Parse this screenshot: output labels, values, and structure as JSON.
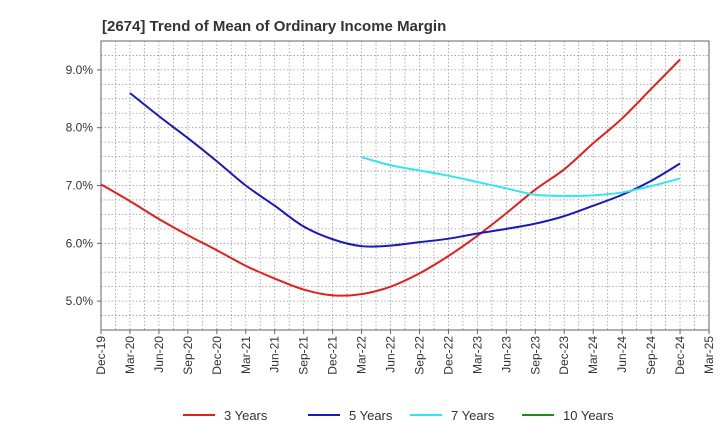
{
  "chart_data": {
    "type": "line",
    "title": "[2674]  Trend of Mean of Ordinary Income Margin",
    "xlabel": "",
    "ylabel": "",
    "categories": [
      "Dec-19",
      "Mar-20",
      "Jun-20",
      "Sep-20",
      "Dec-20",
      "Mar-21",
      "Jun-21",
      "Sep-21",
      "Dec-21",
      "Mar-22",
      "Jun-22",
      "Sep-22",
      "Dec-22",
      "Mar-23",
      "Jun-23",
      "Sep-23",
      "Dec-23",
      "Mar-24",
      "Jun-24",
      "Sep-24",
      "Dec-24",
      "Mar-25"
    ],
    "y_ticks": [
      "5.0%",
      "6.0%",
      "7.0%",
      "8.0%",
      "9.0%"
    ],
    "ylim": [
      4.5,
      9.5
    ],
    "grid": true,
    "legend_position": "bottom",
    "series": [
      {
        "name": "3 Years",
        "color": "#e0201c",
        "values": [
          7.02,
          6.73,
          6.42,
          6.14,
          5.88,
          5.61,
          5.39,
          5.2,
          5.1,
          5.12,
          5.25,
          5.48,
          5.78,
          6.13,
          6.52,
          6.93,
          7.28,
          7.73,
          8.16,
          8.67,
          9.18,
          null
        ]
      },
      {
        "name": "5 Years",
        "color": "#1a1ab8",
        "values": [
          null,
          8.6,
          8.2,
          7.82,
          7.42,
          7.0,
          6.65,
          6.29,
          6.07,
          5.95,
          5.96,
          6.02,
          6.08,
          6.17,
          6.25,
          6.34,
          6.47,
          6.65,
          6.84,
          7.08,
          7.38,
          null
        ]
      },
      {
        "name": "7 Years",
        "color": "#33e6ec",
        "values": [
          null,
          null,
          null,
          null,
          null,
          null,
          null,
          null,
          null,
          7.49,
          7.35,
          7.26,
          7.17,
          7.06,
          6.95,
          6.84,
          6.82,
          6.83,
          6.88,
          6.99,
          7.12,
          null
        ]
      },
      {
        "name": "10 Years",
        "color": "#1f8a1f",
        "values": [
          null,
          null,
          null,
          null,
          null,
          null,
          null,
          null,
          null,
          null,
          null,
          null,
          null,
          null,
          null,
          null,
          null,
          null,
          null,
          null,
          null,
          null
        ]
      }
    ]
  }
}
